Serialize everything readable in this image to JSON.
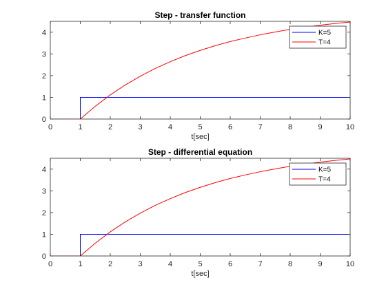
{
  "chart_data": [
    {
      "type": "line",
      "title": "Step - transfer function",
      "xlabel": "t[sec]",
      "ylabel": "",
      "xlim": [
        0,
        10
      ],
      "ylim": [
        0,
        4.5
      ],
      "xticks": [
        0,
        1,
        2,
        3,
        4,
        5,
        6,
        7,
        8,
        9,
        10
      ],
      "yticks": [
        0,
        1,
        2,
        3,
        4
      ],
      "grid": false,
      "legend_position": "top-right",
      "series": [
        {
          "name": "K=5",
          "color": "#0000ff",
          "x": [
            0,
            1,
            1,
            10
          ],
          "y": [
            0,
            0,
            1,
            1
          ]
        },
        {
          "name": "T=4",
          "color": "#ff0000",
          "x": [
            0,
            1,
            1.5,
            2,
            2.5,
            3,
            3.5,
            4,
            4.5,
            5,
            5.5,
            6,
            6.5,
            7,
            7.5,
            8,
            8.5,
            9,
            9.5,
            10
          ],
          "y": [
            0,
            0,
            0.59,
            1.11,
            1.57,
            1.97,
            2.33,
            2.64,
            2.92,
            3.16,
            3.38,
            3.57,
            3.73,
            3.88,
            4.01,
            4.13,
            4.23,
            4.32,
            4.4,
            4.47
          ]
        }
      ]
    },
    {
      "type": "line",
      "title": "Step - differential equation",
      "xlabel": "t[sec]",
      "ylabel": "",
      "xlim": [
        0,
        10
      ],
      "ylim": [
        0,
        4.5
      ],
      "xticks": [
        0,
        1,
        2,
        3,
        4,
        5,
        6,
        7,
        8,
        9,
        10
      ],
      "yticks": [
        0,
        1,
        2,
        3,
        4
      ],
      "grid": false,
      "legend_position": "top-right",
      "series": [
        {
          "name": "K=5",
          "color": "#0000ff",
          "x": [
            0,
            1,
            1,
            10
          ],
          "y": [
            0,
            0,
            1,
            1
          ]
        },
        {
          "name": "T=4",
          "color": "#ff0000",
          "x": [
            0,
            1,
            1.5,
            2,
            2.5,
            3,
            3.5,
            4,
            4.5,
            5,
            5.5,
            6,
            6.5,
            7,
            7.5,
            8,
            8.5,
            9,
            9.5,
            10
          ],
          "y": [
            0,
            0,
            0.59,
            1.11,
            1.57,
            1.97,
            2.33,
            2.64,
            2.92,
            3.16,
            3.38,
            3.57,
            3.73,
            3.88,
            4.01,
            4.13,
            4.23,
            4.32,
            4.4,
            4.47
          ]
        }
      ]
    }
  ]
}
